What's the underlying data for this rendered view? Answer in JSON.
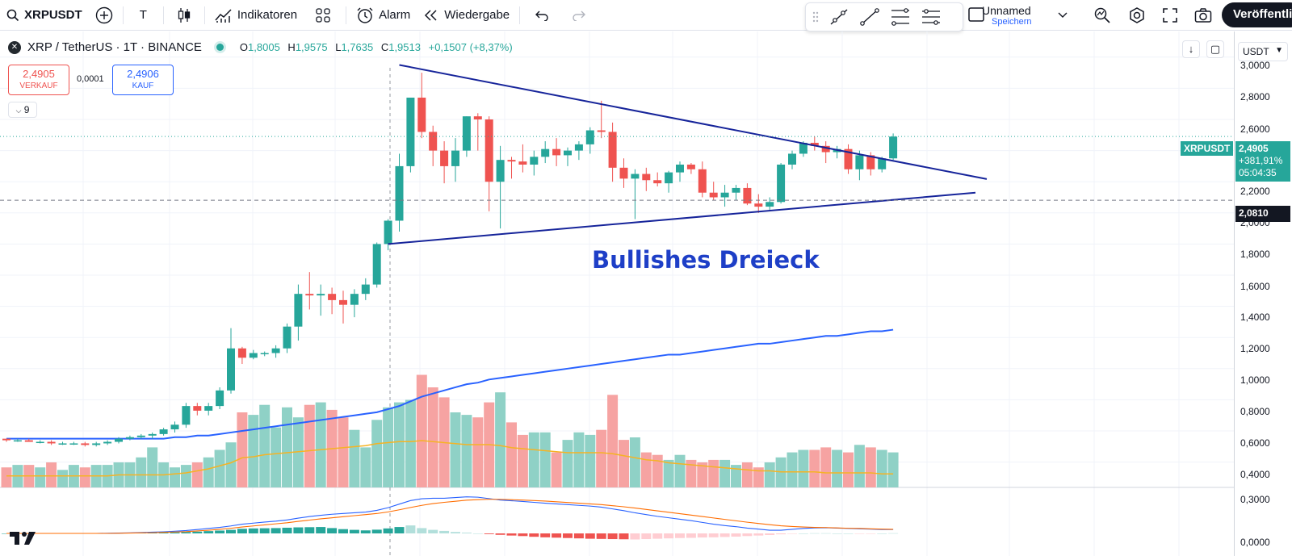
{
  "toolbar": {
    "symbol": "XRPUSDT",
    "interval": "T",
    "indicators_label": "Indikatoren",
    "alert_label": "Alarm",
    "replay_label": "Wiedergabe",
    "layout_name": "Unnamed",
    "layout_status": "Speichern",
    "publish_label": "Veröffentli"
  },
  "legend": {
    "logo_text": "✕",
    "title": "XRP / TetherUS · 1T · BINANCE",
    "open_label": "O",
    "open": "1,8005",
    "high_label": "H",
    "high": "1,9575",
    "low_label": "L",
    "low": "1,7635",
    "close_label": "C",
    "close": "1,9513",
    "change": "+0,1507 (+8,37%)"
  },
  "trade": {
    "sell_price": "2,4905",
    "sell_label": "VERKAUF",
    "spread": "0,0001",
    "buy_price": "2,4906",
    "buy_label": "KAUF"
  },
  "indicator_toggle": "9",
  "currency": "USDT",
  "annotation": "Bullishes Dreieck",
  "price_tags": {
    "symbol": "XRPUSDT",
    "current_price": "2,4905",
    "current_change": "+381,91%",
    "countdown": "05:04:35",
    "line_price": "2,0810"
  },
  "price_axis": [
    "3,0000",
    "2,8000",
    "2,6000",
    "2,4000",
    "2,2000",
    "2,0000",
    "1,8000",
    "1,6000",
    "1,4000",
    "1,2000",
    "1,0000",
    "0,8000",
    "0,6000",
    "0,4000",
    "0,3000",
    "0,0000"
  ],
  "colors": {
    "up": "#26a69a",
    "down": "#ef5350",
    "up_volume": "#8fd1c6",
    "down_volume": "#f6a3a2",
    "ma_long": "#2962ff",
    "ma_volume": "#f5b324",
    "trendline": "#16249a",
    "annotation": "#1e3fc7"
  },
  "chart_data": {
    "type": "candlestick",
    "y_range": [
      0.3,
      3.0
    ],
    "candles": [
      [
        0.55,
        0.55,
        0.53,
        0.54
      ],
      [
        0.54,
        0.55,
        0.53,
        0.54
      ],
      [
        0.54,
        0.55,
        0.53,
        0.53
      ],
      [
        0.53,
        0.54,
        0.52,
        0.53
      ],
      [
        0.53,
        0.54,
        0.51,
        0.52
      ],
      [
        0.52,
        0.53,
        0.51,
        0.52
      ],
      [
        0.52,
        0.53,
        0.51,
        0.52
      ],
      [
        0.52,
        0.53,
        0.5,
        0.51
      ],
      [
        0.51,
        0.53,
        0.5,
        0.52
      ],
      [
        0.52,
        0.54,
        0.51,
        0.53
      ],
      [
        0.53,
        0.56,
        0.52,
        0.55
      ],
      [
        0.55,
        0.57,
        0.54,
        0.56
      ],
      [
        0.56,
        0.58,
        0.55,
        0.57
      ],
      [
        0.57,
        0.59,
        0.55,
        0.58
      ],
      [
        0.58,
        0.62,
        0.57,
        0.61
      ],
      [
        0.61,
        0.66,
        0.59,
        0.64
      ],
      [
        0.64,
        0.78,
        0.62,
        0.76
      ],
      [
        0.76,
        0.78,
        0.7,
        0.73
      ],
      [
        0.73,
        0.78,
        0.7,
        0.76
      ],
      [
        0.76,
        0.88,
        0.74,
        0.86
      ],
      [
        0.86,
        1.26,
        0.84,
        1.13
      ],
      [
        1.13,
        1.14,
        1.03,
        1.07
      ],
      [
        1.07,
        1.12,
        1.06,
        1.1
      ],
      [
        1.1,
        1.11,
        1.08,
        1.1
      ],
      [
        1.1,
        1.15,
        1.07,
        1.13
      ],
      [
        1.13,
        1.29,
        1.1,
        1.27
      ],
      [
        1.27,
        1.54,
        1.18,
        1.48
      ],
      [
        1.48,
        1.62,
        1.38,
        1.47
      ],
      [
        1.47,
        1.54,
        1.34,
        1.48
      ],
      [
        1.48,
        1.52,
        1.35,
        1.44
      ],
      [
        1.44,
        1.5,
        1.29,
        1.41
      ],
      [
        1.41,
        1.51,
        1.33,
        1.48
      ],
      [
        1.48,
        1.58,
        1.44,
        1.54
      ],
      [
        1.54,
        1.81,
        1.52,
        1.8
      ],
      [
        1.8,
        1.96,
        1.76,
        1.95
      ],
      [
        1.95,
        2.38,
        1.88,
        2.3
      ],
      [
        2.3,
        2.74,
        2.26,
        2.74
      ],
      [
        2.74,
        2.9,
        2.48,
        2.52
      ],
      [
        2.52,
        2.56,
        2.3,
        2.4
      ],
      [
        2.4,
        2.46,
        2.19,
        2.3
      ],
      [
        2.3,
        2.48,
        2.2,
        2.4
      ],
      [
        2.4,
        2.62,
        2.36,
        2.62
      ],
      [
        2.62,
        2.64,
        2.4,
        2.6
      ],
      [
        2.6,
        2.62,
        2.01,
        2.2
      ],
      [
        2.2,
        2.43,
        1.9,
        2.34
      ],
      [
        2.34,
        2.36,
        2.22,
        2.33
      ],
      [
        2.33,
        2.44,
        2.26,
        2.31
      ],
      [
        2.31,
        2.4,
        2.24,
        2.36
      ],
      [
        2.36,
        2.46,
        2.32,
        2.41
      ],
      [
        2.41,
        2.48,
        2.3,
        2.37
      ],
      [
        2.37,
        2.42,
        2.3,
        2.4
      ],
      [
        2.4,
        2.46,
        2.34,
        2.44
      ],
      [
        2.44,
        2.55,
        2.38,
        2.53
      ],
      [
        2.53,
        2.72,
        2.48,
        2.52
      ],
      [
        2.52,
        2.58,
        2.2,
        2.29
      ],
      [
        2.29,
        2.35,
        2.16,
        2.22
      ],
      [
        2.22,
        2.28,
        1.96,
        2.25
      ],
      [
        2.25,
        2.29,
        2.14,
        2.21
      ],
      [
        2.21,
        2.26,
        2.17,
        2.19
      ],
      [
        2.19,
        2.27,
        2.13,
        2.26
      ],
      [
        2.26,
        2.33,
        2.2,
        2.31
      ],
      [
        2.31,
        2.32,
        2.25,
        2.28
      ],
      [
        2.28,
        2.33,
        2.1,
        2.13
      ],
      [
        2.13,
        2.2,
        2.08,
        2.1
      ],
      [
        2.1,
        2.18,
        2.04,
        2.13
      ],
      [
        2.13,
        2.18,
        2.08,
        2.16
      ],
      [
        2.16,
        2.19,
        2.05,
        2.06
      ],
      [
        2.06,
        2.12,
        2.0,
        2.04
      ],
      [
        2.04,
        2.1,
        2.02,
        2.07
      ],
      [
        2.07,
        2.32,
        2.06,
        2.31
      ],
      [
        2.31,
        2.4,
        2.28,
        2.38
      ],
      [
        2.38,
        2.46,
        2.36,
        2.45
      ],
      [
        2.45,
        2.49,
        2.4,
        2.43
      ],
      [
        2.43,
        2.46,
        2.32,
        2.39
      ],
      [
        2.39,
        2.43,
        2.35,
        2.41
      ],
      [
        2.41,
        2.44,
        2.25,
        2.28
      ],
      [
        2.28,
        2.4,
        2.21,
        2.37
      ],
      [
        2.37,
        2.39,
        2.24,
        2.28
      ],
      [
        2.28,
        2.36,
        2.26,
        2.35
      ],
      [
        2.35,
        2.51,
        2.34,
        2.49
      ]
    ],
    "volume": [
      8,
      9,
      9,
      8,
      10,
      7,
      9,
      8,
      9,
      9,
      10,
      10,
      12,
      16,
      10,
      8,
      9,
      10,
      12,
      15,
      18,
      30,
      29,
      33,
      24,
      32,
      28,
      33,
      34,
      31,
      28,
      23,
      16,
      27,
      32,
      34,
      35,
      45,
      40,
      36,
      30,
      29,
      28,
      34,
      38,
      26,
      21,
      22,
      22,
      14,
      19,
      22,
      21,
      23,
      37,
      19,
      20,
      14,
      13,
      11,
      13,
      11,
      10,
      11,
      11,
      9,
      10,
      8,
      10,
      12,
      14,
      15,
      15,
      16,
      15,
      14,
      17,
      16,
      15,
      14
    ],
    "volume_ma": [
      0.9,
      0.9,
      0.9,
      0.9,
      0.9,
      0.9,
      0.9,
      0.9,
      0.9,
      0.9,
      1.0,
      1.0,
      1.0,
      1.0,
      1.0,
      1.1,
      1.2,
      1.4,
      1.6,
      1.9,
      2.2,
      2.7,
      2.8,
      3.0,
      3.1,
      3.2,
      3.3,
      3.4,
      3.5,
      3.6,
      3.7,
      3.8,
      3.9,
      4.1,
      4.2,
      4.3,
      4.3,
      4.4,
      4.3,
      4.2,
      4.1,
      4.0,
      4.0,
      4.0,
      3.9,
      3.7,
      3.6,
      3.5,
      3.4,
      3.3,
      3.2,
      3.2,
      3.2,
      3.2,
      3.1,
      2.9,
      2.7,
      2.5,
      2.4,
      2.2,
      2.1,
      2.0,
      1.9,
      1.8,
      1.7,
      1.6,
      1.5,
      1.4,
      1.4,
      1.3,
      1.3,
      1.3,
      1.3,
      1.2,
      1.2,
      1.2,
      1.2,
      1.2,
      1.1,
      1.1
    ],
    "long_ma": [
      0.55,
      0.55,
      0.55,
      0.55,
      0.55,
      0.55,
      0.55,
      0.55,
      0.55,
      0.55,
      0.55,
      0.55,
      0.55,
      0.55,
      0.55,
      0.56,
      0.56,
      0.57,
      0.57,
      0.58,
      0.59,
      0.6,
      0.61,
      0.62,
      0.63,
      0.64,
      0.65,
      0.66,
      0.67,
      0.68,
      0.69,
      0.7,
      0.71,
      0.72,
      0.74,
      0.76,
      0.79,
      0.82,
      0.84,
      0.86,
      0.88,
      0.9,
      0.91,
      0.93,
      0.94,
      0.95,
      0.96,
      0.97,
      0.98,
      0.99,
      1.0,
      1.01,
      1.02,
      1.03,
      1.04,
      1.05,
      1.06,
      1.07,
      1.08,
      1.09,
      1.09,
      1.1,
      1.11,
      1.12,
      1.13,
      1.14,
      1.15,
      1.16,
      1.16,
      1.17,
      1.18,
      1.19,
      1.2,
      1.21,
      1.21,
      1.22,
      1.23,
      1.24,
      1.24,
      1.25
    ],
    "macd_hist": [
      0,
      0,
      0,
      0,
      0,
      0,
      0,
      0,
      0,
      0,
      0.2,
      0.3,
      0.3,
      0.4,
      0.5,
      0.6,
      0.8,
      1.0,
      1.3,
      1.6,
      2.0,
      2.6,
      2.8,
      2.9,
      3.0,
      3.2,
      3.4,
      3.5,
      3.6,
      3.0,
      2.4,
      2.0,
      1.7,
      2.1,
      2.8,
      3.6,
      4.5,
      3.0,
      2.0,
      1.4,
      0.8,
      0.4,
      0.0,
      -0.4,
      -0.8,
      -1.2,
      -1.5,
      -1.9,
      -2.2,
      -2.4,
      -2.6,
      -2.8,
      -3.0,
      -3.1,
      -3.2,
      -3.3,
      -3.4,
      -3.2,
      -3.0,
      -2.8,
      -2.6,
      -2.5,
      -2.3,
      -2.2,
      -2.0,
      -1.8,
      -1.5,
      -1.2,
      -0.9,
      -0.5,
      -0.2,
      0.0,
      0.1,
      0.1,
      0.0,
      0.0,
      -0.1,
      -0.1,
      0.0,
      0.1
    ],
    "macd_line": [
      0,
      0,
      0,
      0,
      0,
      0,
      0,
      0,
      0,
      0.1,
      0.2,
      0.3,
      0.5,
      0.7,
      0.9,
      1.2,
      1.6,
      2.2,
      2.8,
      3.4,
      4.2,
      5.2,
      5.8,
      6.4,
      6.9,
      7.6,
      8.6,
      9.5,
      10.2,
      10.8,
      11.2,
      11.6,
      12.0,
      13.0,
      14.5,
      16.5,
      18.5,
      19.5,
      19.8,
      19.8,
      20.2,
      20.6,
      20.4,
      19.6,
      18.8,
      18.4,
      18.0,
      17.5,
      17.0,
      16.6,
      16.2,
      15.8,
      15.4,
      14.8,
      13.8,
      12.8,
      11.6,
      10.6,
      9.6,
      8.8,
      8.0,
      7.2,
      6.2,
      5.2,
      4.4,
      3.8,
      3.0,
      2.4,
      1.8,
      1.8,
      2.3,
      2.8,
      3.1,
      3.2,
      3.0,
      2.8,
      2.6,
      2.4,
      2.2,
      2.2
    ],
    "signal_line": [
      0,
      0,
      0,
      0,
      0,
      0,
      0,
      0,
      0,
      0,
      0.1,
      0.2,
      0.3,
      0.4,
      0.6,
      0.8,
      1.0,
      1.4,
      1.8,
      2.3,
      2.9,
      3.6,
      4.2,
      4.8,
      5.4,
      6.0,
      6.8,
      7.5,
      8.2,
      8.8,
      9.4,
      10.0,
      10.6,
      11.2,
      12.1,
      13.3,
      14.6,
      15.8,
      16.8,
      17.5,
      18.1,
      18.7,
      19.0,
      19.2,
      19.2,
      19.0,
      18.8,
      18.5,
      18.2,
      17.8,
      17.4,
      17.0,
      16.6,
      16.2,
      15.6,
      15.0,
      14.3,
      13.5,
      12.7,
      11.9,
      11.1,
      10.3,
      9.5,
      8.7,
      7.9,
      7.1,
      6.3,
      5.6,
      4.9,
      4.3,
      3.9,
      3.6,
      3.4,
      3.3,
      3.1,
      2.9,
      2.8,
      2.6,
      2.4,
      2.3
    ],
    "trendlines": [
      {
        "from": [
          35,
          2.95
        ],
        "to": [
          85,
          2.29
        ]
      },
      {
        "from": [
          34,
          1.8
        ],
        "to": [
          85,
          2.13
        ]
      }
    ],
    "horizontal_line": 2.081,
    "last_price_line": 2.4905
  }
}
